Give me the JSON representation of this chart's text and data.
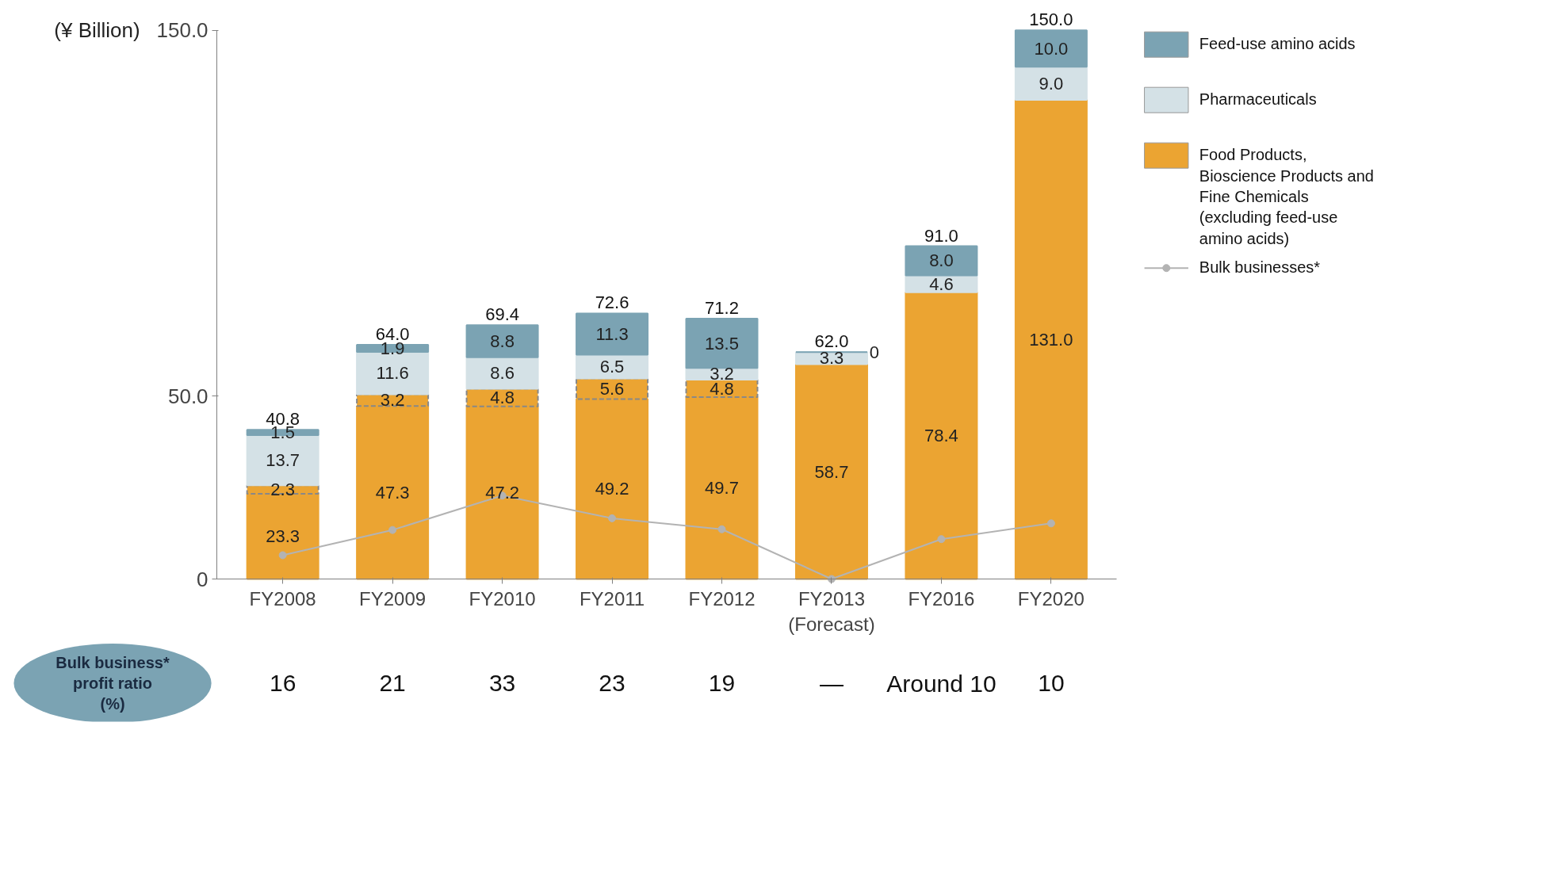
{
  "chart_data": {
    "type": "bar",
    "stacked": true,
    "ylabel": "(¥ Billion)",
    "categories": [
      "FY2008",
      "FY2009",
      "FY2010",
      "FY2011",
      "FY2012",
      "FY2013 (Forecast)",
      "FY2016",
      "FY2020"
    ],
    "series": [
      {
        "name": "Food Products, Bioscience Products and Fine Chemicals (excluding feed-use amino acids)",
        "color": "#eba432",
        "values": [
          23.3,
          47.3,
          47.2,
          49.2,
          49.7,
          58.7,
          78.4,
          131.0
        ],
        "value_labels": [
          "23.3",
          "47.3",
          "47.2",
          "49.2",
          "49.7",
          "58.7",
          "78.4",
          "131.0"
        ]
      },
      {
        "color": "#eba432",
        "line_style": "dashed",
        "values": [
          2.3,
          3.2,
          4.8,
          5.6,
          4.8,
          null,
          null,
          null
        ],
        "value_labels": [
          "2.3",
          "3.2",
          "4.8",
          "5.6",
          "4.8",
          null,
          null,
          null
        ]
      },
      {
        "name": "Pharmaceuticals",
        "color": "#d4e1e6",
        "values": [
          13.7,
          11.6,
          8.6,
          6.5,
          3.2,
          3.3,
          4.6,
          9.0
        ],
        "value_labels": [
          "13.7",
          "11.6",
          "8.6",
          "6.5",
          "3.2",
          "3.3",
          "4.6",
          "9.0"
        ]
      },
      {
        "name": "Feed-use amino acids",
        "color": "#7ba3b3",
        "values": [
          1.5,
          1.9,
          8.8,
          11.3,
          13.5,
          0,
          8.0,
          10.0
        ],
        "value_labels": [
          "1.5",
          "1.9",
          "8.8",
          "11.3",
          "13.5",
          "0",
          "8.0",
          "10.0"
        ]
      },
      {
        "name": "Bulk businesses*",
        "type": "line",
        "marker": "circle",
        "color": "#b3b3b3",
        "values": [
          6.5,
          13.4,
          22.8,
          16.6,
          13.6,
          0,
          10.9,
          15.2
        ]
      }
    ],
    "totals": [
      "40.8",
      "64.0",
      "69.4",
      "72.6",
      "71.2",
      "62.0",
      "91.0",
      "150.0"
    ],
    "ylim": [
      0,
      150
    ],
    "yticks": [
      0,
      {
        "value": 50,
        "label": "50.0"
      },
      {
        "value": 150,
        "label": "150.0"
      }
    ],
    "grid": false,
    "legend": "right",
    "annotations": [
      "Bulk business* profit ratio (%)",
      "16",
      "21",
      "33",
      "23",
      "19",
      "—",
      "Around 10",
      "10"
    ]
  }
}
